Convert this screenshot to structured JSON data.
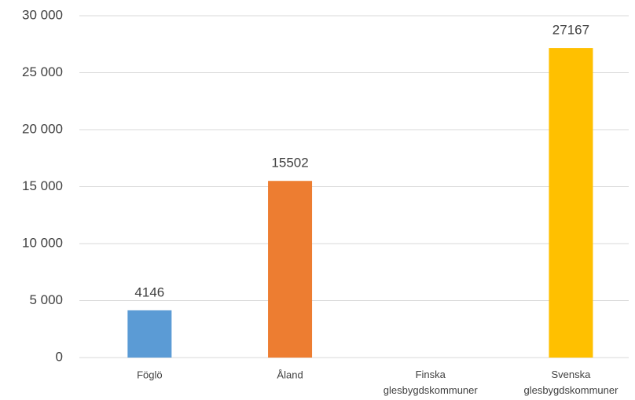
{
  "chart_data": {
    "type": "bar",
    "categories": [
      "Föglö",
      "Åland",
      "Finska glesbygdskommuner",
      "Svenska glesbygdskommuner"
    ],
    "values": [
      4146,
      15502,
      null,
      27167
    ],
    "colors": [
      "#5b9bd5",
      "#ed7d31",
      null,
      "#ffc000"
    ],
    "ylim": [
      0,
      30000
    ],
    "yticks": [
      0,
      {
        "value": 5000,
        "label": "5 000"
      },
      {
        "value": 10000,
        "label": "10 000"
      },
      {
        "value": 15000,
        "label": "15 000"
      },
      {
        "value": 20000,
        "label": "20 000"
      },
      {
        "value": 25000,
        "label": "25 000"
      },
      {
        "value": 30000,
        "label": "30 000"
      }
    ],
    "grid": true,
    "data_labels": true
  }
}
